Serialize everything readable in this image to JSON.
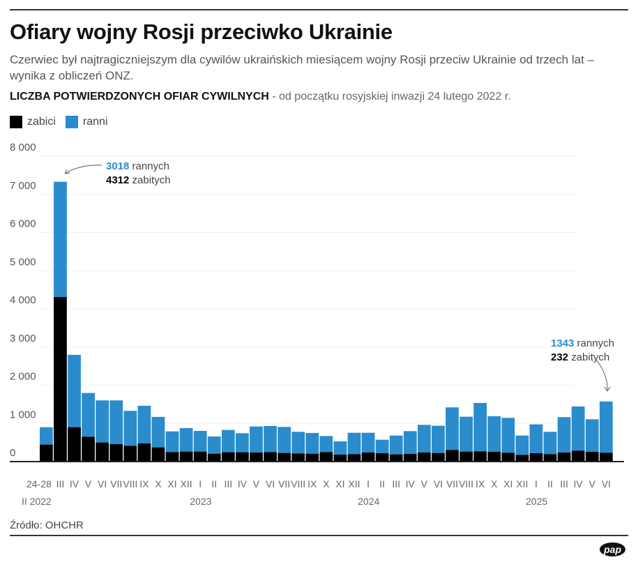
{
  "header": {
    "title": "Ofiary wojny Rosji przeciwko Ukrainie",
    "subtitle": "Czerwiec był najtragiczniejszym dla cywilów ukraińskich miesiącem wojny Rosji przeciw Ukrainie od trzech lat – wynika z obliczeń ONZ.",
    "section_bold": "LICZBA POTWIERDZONYCH OFIAR CYWILNYCH",
    "section_rest": " - od początku rosyjskiej inwazji 24 lutego 2022 r."
  },
  "source": "Źródło: OHCHR",
  "logo": "pap",
  "chart_data": {
    "type": "bar",
    "stacked": true,
    "ylim": [
      0,
      8000
    ],
    "yticks": [
      "0",
      "1 000",
      "2 000",
      "3 000",
      "4 000",
      "5 000",
      "6 000",
      "7 000",
      "8 000"
    ],
    "grid": true,
    "legend_position": "top-left",
    "categories": [
      "24-28",
      "III",
      "IV",
      "V",
      "VI",
      "VII",
      "VIII",
      "IX",
      "X",
      "XI",
      "XII",
      "I",
      "II",
      "III",
      "IV",
      "V",
      "VI",
      "VII",
      "VIII",
      "IX",
      "X",
      "XI",
      "XII",
      "I",
      "II",
      "III",
      "IV",
      "V",
      "VI",
      "VII",
      "VIII",
      "IX",
      "X",
      "XI",
      "XII",
      "I",
      "II",
      "III",
      "IV",
      "V",
      "VI"
    ],
    "year_labels": [
      {
        "label": "II 2022",
        "index": 0
      },
      {
        "label": "2023",
        "index": 11
      },
      {
        "label": "2024",
        "index": 23
      },
      {
        "label": "2025",
        "index": 35
      }
    ],
    "series": [
      {
        "name": "zabici",
        "color": "#000000",
        "values": [
          445,
          4312,
          900,
          652,
          500,
          457,
          415,
          475,
          372,
          250,
          262,
          262,
          207,
          244,
          244,
          238,
          250,
          226,
          213,
          207,
          250,
          183,
          195,
          238,
          219,
          189,
          201,
          238,
          225,
          305,
          262,
          268,
          256,
          232,
          177,
          219,
          195,
          238,
          287,
          256,
          232
        ]
      },
      {
        "name": "ranni",
        "color": "#2a8ccc",
        "values": [
          455,
          3018,
          1897,
          1145,
          1103,
          1146,
          914,
          987,
          798,
          542,
          615,
          542,
          451,
          585,
          499,
          682,
          682,
          682,
          567,
          543,
          420,
          347,
          560,
          517,
          354,
          493,
          597,
          725,
          713,
          1115,
          914,
          1268,
          932,
          914,
          505,
          756,
          585,
          926,
          1157,
          853,
          1343
        ]
      }
    ],
    "annotations": [
      {
        "index": 1,
        "injured": "3018",
        "injured_text": " rannych",
        "killed": "4312",
        "killed_text": " zabitych"
      },
      {
        "index": 40,
        "injured": "1343",
        "injured_text": " rannych",
        "killed": "232",
        "killed_text": " zabitych"
      }
    ]
  }
}
